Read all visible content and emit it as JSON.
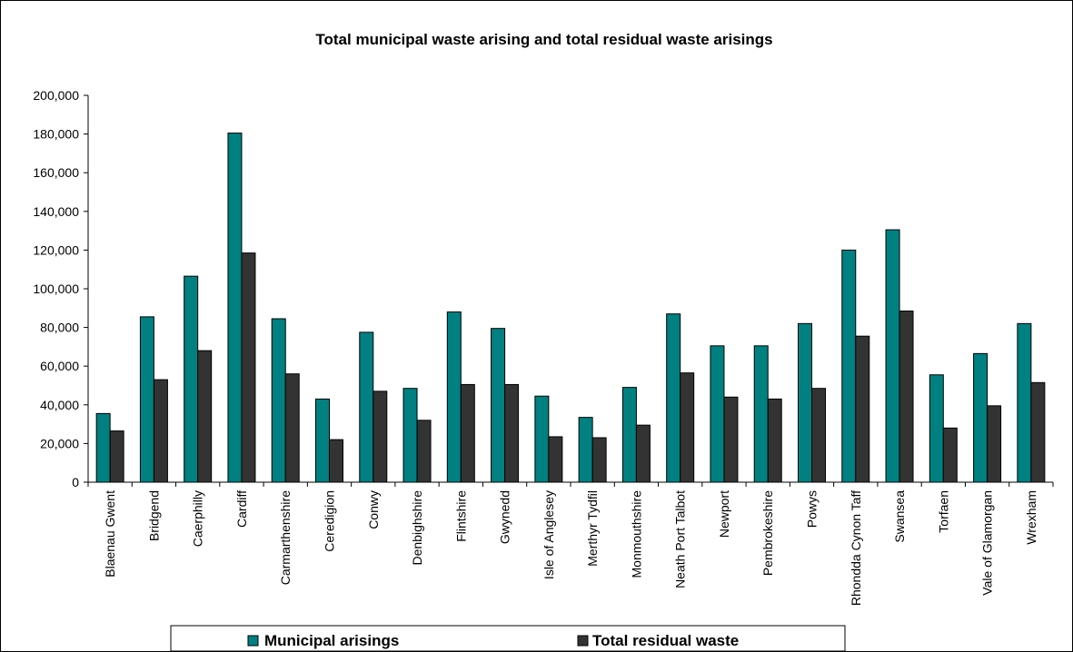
{
  "chart_data": {
    "type": "bar",
    "title": "Total municipal waste arising and total residual waste arisings",
    "xlabel": "",
    "ylabel": "",
    "ylim": [
      0,
      200000
    ],
    "yticks": [
      0,
      20000,
      40000,
      60000,
      80000,
      100000,
      120000,
      140000,
      160000,
      180000,
      200000
    ],
    "ytick_labels": [
      "0",
      "20,000",
      "40,000",
      "60,000",
      "80,000",
      "100,000",
      "120,000",
      "140,000",
      "160,000",
      "180,000",
      "200,000"
    ],
    "categories": [
      "Blaenau Gwent",
      "Bridgend",
      "Caerphilly",
      "Cardiff",
      "Carmarthenshire",
      "Ceredigion",
      "Conwy",
      "Denbighshire",
      "Flintshire",
      "Gwynedd",
      "Isle of Anglesey",
      "Merthyr Tydfil",
      "Monmouthshire",
      "Neath Port Talbot",
      "Newport",
      "Pembrokeshire",
      "Powys",
      "Rhondda Cynon Taff",
      "Swansea",
      "Torfaen",
      "Vale of Glamorgan",
      "Wrexham"
    ],
    "series": [
      {
        "name": "Municipal arisings",
        "color": "#008080",
        "values": [
          35500,
          85500,
          106500,
          180500,
          84500,
          43000,
          77500,
          48500,
          88000,
          79500,
          44500,
          33500,
          49000,
          87000,
          70500,
          70500,
          82000,
          120000,
          130500,
          55500,
          66500,
          82000
        ]
      },
      {
        "name": "Total residual waste",
        "color": "#333333",
        "values": [
          26500,
          53000,
          68000,
          118500,
          56000,
          22000,
          47000,
          32000,
          50500,
          50500,
          23500,
          23000,
          29500,
          56500,
          44000,
          43000,
          48500,
          75500,
          88500,
          28000,
          39500,
          51500
        ]
      }
    ],
    "grid": false,
    "legend_position": "bottom"
  }
}
